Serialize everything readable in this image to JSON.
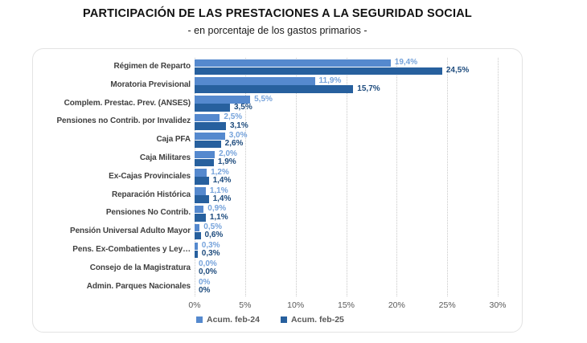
{
  "header": {
    "title": "PARTICIPACIÓN DE LAS PRESTACIONES A LA SEGURIDAD SOCIAL",
    "subtitle": "- en porcentaje de los gastos primarios -"
  },
  "colors": {
    "series_feb24": "#5589CE",
    "series_feb25": "#27609E",
    "value_label_feb24": "#76A3DB",
    "value_label_feb25": "#1D4B7D",
    "category_label": "#3F3F3F",
    "axis_label": "#595959",
    "gridline": "#C8C8C8",
    "box_border": "#E3E3E3"
  },
  "chart_data": {
    "type": "bar",
    "orientation": "horizontal",
    "title": "PARTICIPACIÓN DE LAS PRESTACIONES A LA SEGURIDAD SOCIAL",
    "subtitle": "- en porcentaje de los gastos primarios -",
    "categories": [
      "Régimen de Reparto",
      "Moratoria Previsional",
      "Complem. Prestac. Prev. (ANSES)",
      "Pensiones no Contrib. por Invalidez",
      "Caja PFA",
      "Caja Militares",
      "Ex-Cajas Provinciales",
      "Reparación Histórica",
      "Pensiones No Contrib.",
      "Pensión Universal Adulto Mayor",
      "Pens. Ex-Combatientes y Ley…",
      "Consejo de la Magistratura",
      "Admin. Parques Nacionales"
    ],
    "series": [
      {
        "name": "Acum. feb-24",
        "color": "#5589CE",
        "label_color": "#76A3DB",
        "values": [
          19.4,
          11.9,
          5.5,
          2.5,
          3.0,
          2.0,
          1.2,
          1.1,
          0.9,
          0.5,
          0.3,
          0.0,
          0
        ],
        "labels": [
          "19,4%",
          "11,9%",
          "5,5%",
          "2,5%",
          "3,0%",
          "2,0%",
          "1,2%",
          "1,1%",
          "0,9%",
          "0,5%",
          "0,3%",
          "0,0%",
          "0%"
        ]
      },
      {
        "name": "Acum. feb-25",
        "color": "#27609E",
        "label_color": "#1D4B7D",
        "values": [
          24.5,
          15.7,
          3.5,
          3.1,
          2.6,
          1.9,
          1.4,
          1.4,
          1.1,
          0.6,
          0.3,
          0.0,
          0
        ],
        "labels": [
          "24,5%",
          "15,7%",
          "3,5%",
          "3,1%",
          "2,6%",
          "1,9%",
          "1,4%",
          "1,4%",
          "1,1%",
          "0,6%",
          "0,3%",
          "0,0%",
          "0%"
        ]
      }
    ],
    "x_ticks": [
      "0%",
      "5%",
      "10%",
      "15%",
      "20%",
      "25%",
      "30%"
    ],
    "xlim": [
      0,
      30
    ],
    "grid": "vertical-dotted",
    "legend_position": "bottom"
  }
}
